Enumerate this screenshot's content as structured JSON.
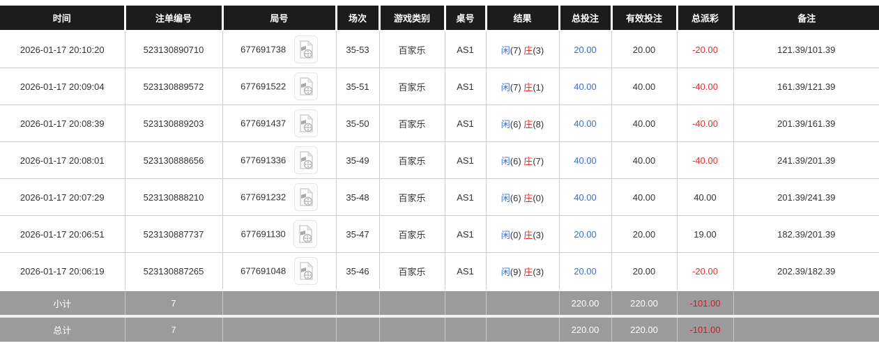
{
  "colors": {
    "header_bg": "#1c1c1c",
    "row_border": "#cccccc",
    "accent_blue": "#3a6ecf",
    "accent_red": "#dd3030",
    "footer_bg": "#9b9b9b",
    "footer_neg_red": "#cc1e1e",
    "text_dark": "#333333"
  },
  "table": {
    "columns": [
      {
        "key": "time",
        "label": "时间"
      },
      {
        "key": "bet-id",
        "label": "注单编号"
      },
      {
        "key": "round-no",
        "label": "局号"
      },
      {
        "key": "session",
        "label": "场次"
      },
      {
        "key": "game-type",
        "label": "游戏类别"
      },
      {
        "key": "table-no",
        "label": "桌号"
      },
      {
        "key": "result",
        "label": "结果"
      },
      {
        "key": "total-bet",
        "label": "总投注"
      },
      {
        "key": "valid-bet",
        "label": "有效投注"
      },
      {
        "key": "payout",
        "label": "总派彩"
      },
      {
        "key": "remark",
        "label": "备注"
      }
    ],
    "video_icon_name": "video-replay-icon",
    "rows": [
      {
        "time": "2026-01-17 20:10:20",
        "bet_id": "523130890710",
        "round_no": "677691738",
        "session": "35-53",
        "game_type": "百家乐",
        "table_no": "AS1",
        "result": {
          "player_label": "闲",
          "player_score": "(7)",
          "banker_label": "庄",
          "banker_score": "(3)"
        },
        "total_bet": "20.00",
        "valid_bet": "20.00",
        "payout": "-20.00",
        "remark": "121.39/101.39"
      },
      {
        "time": "2026-01-17 20:09:04",
        "bet_id": "523130889572",
        "round_no": "677691522",
        "session": "35-51",
        "game_type": "百家乐",
        "table_no": "AS1",
        "result": {
          "player_label": "闲",
          "player_score": "(7)",
          "banker_label": "庄",
          "banker_score": "(1)"
        },
        "total_bet": "40.00",
        "valid_bet": "40.00",
        "payout": "-40.00",
        "remark": "161.39/121.39"
      },
      {
        "time": "2026-01-17 20:08:39",
        "bet_id": "523130889203",
        "round_no": "677691437",
        "session": "35-50",
        "game_type": "百家乐",
        "table_no": "AS1",
        "result": {
          "player_label": "闲",
          "player_score": "(6)",
          "banker_label": "庄",
          "banker_score": "(8)"
        },
        "total_bet": "40.00",
        "valid_bet": "40.00",
        "payout": "-40.00",
        "remark": "201.39/161.39"
      },
      {
        "time": "2026-01-17 20:08:01",
        "bet_id": "523130888656",
        "round_no": "677691336",
        "session": "35-49",
        "game_type": "百家乐",
        "table_no": "AS1",
        "result": {
          "player_label": "闲",
          "player_score": "(6)",
          "banker_label": "庄",
          "banker_score": "(7)"
        },
        "total_bet": "40.00",
        "valid_bet": "40.00",
        "payout": "-40.00",
        "remark": "241.39/201.39"
      },
      {
        "time": "2026-01-17 20:07:29",
        "bet_id": "523130888210",
        "round_no": "677691232",
        "session": "35-48",
        "game_type": "百家乐",
        "table_no": "AS1",
        "result": {
          "player_label": "闲",
          "player_score": "(6)",
          "banker_label": "庄",
          "banker_score": "(0)"
        },
        "total_bet": "40.00",
        "valid_bet": "40.00",
        "payout": "40.00",
        "remark": "201.39/241.39"
      },
      {
        "time": "2026-01-17 20:06:51",
        "bet_id": "523130887737",
        "round_no": "677691130",
        "session": "35-47",
        "game_type": "百家乐",
        "table_no": "AS1",
        "result": {
          "player_label": "闲",
          "player_score": "(0)",
          "banker_label": "庄",
          "banker_score": "(3)"
        },
        "total_bet": "20.00",
        "valid_bet": "20.00",
        "payout": "19.00",
        "remark": "182.39/201.39"
      },
      {
        "time": "2026-01-17 20:06:19",
        "bet_id": "523130887265",
        "round_no": "677691048",
        "session": "35-46",
        "game_type": "百家乐",
        "table_no": "AS1",
        "result": {
          "player_label": "闲",
          "player_score": "(9)",
          "banker_label": "庄",
          "banker_score": "(3)"
        },
        "total_bet": "20.00",
        "valid_bet": "20.00",
        "payout": "-20.00",
        "remark": "202.39/182.39"
      }
    ],
    "footer": [
      {
        "name": "subtotal-row",
        "label": "小计",
        "count": "7",
        "total_bet": "220.00",
        "valid_bet": "220.00",
        "payout": "-101.00",
        "remark": ""
      },
      {
        "name": "total-row",
        "label": "总计",
        "count": "7",
        "total_bet": "220.00",
        "valid_bet": "220.00",
        "payout": "-101.00",
        "remark": ""
      }
    ]
  }
}
